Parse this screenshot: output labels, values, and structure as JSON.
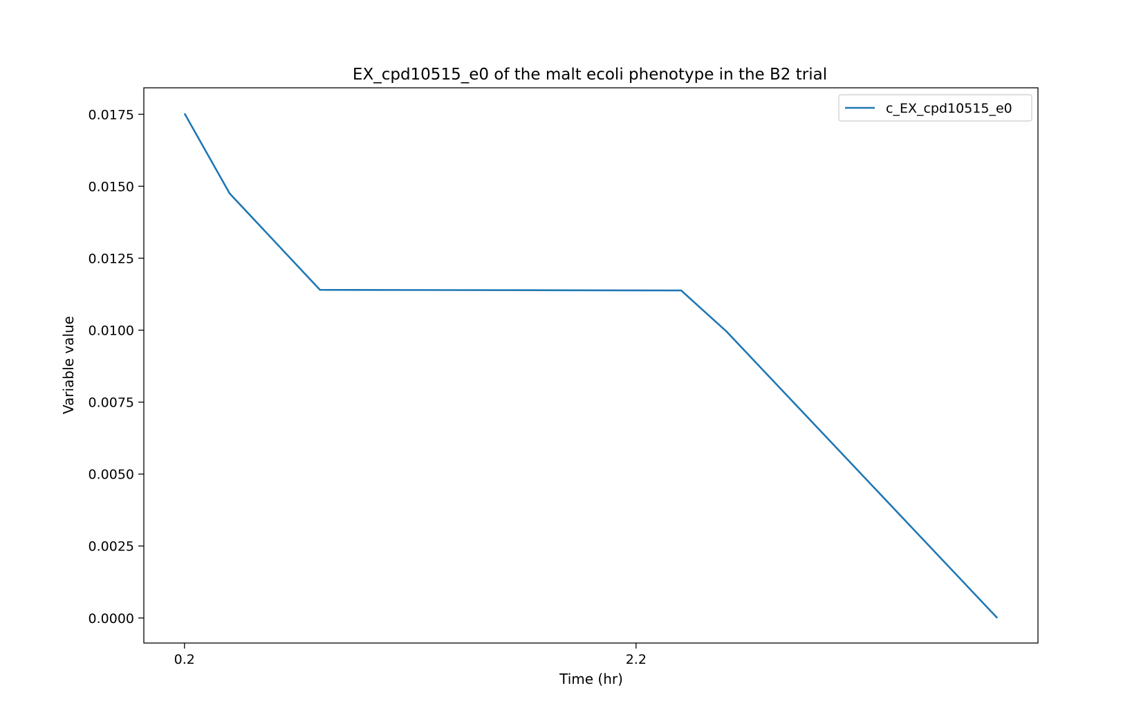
{
  "chart_data": {
    "type": "line",
    "title": "EX_cpd10515_e0 of the malt ecoli phenotype in the B2 trial",
    "xlabel": "Time (hr)",
    "ylabel": "Variable value",
    "x_ticks": [
      0.2,
      2.2
    ],
    "x_tick_labels": [
      "0.2",
      "2.2"
    ],
    "y_ticks": [
      0.0,
      0.0025,
      0.005,
      0.0075,
      0.01,
      0.0125,
      0.015,
      0.0175
    ],
    "y_tick_labels": [
      "0.0000",
      "0.0025",
      "0.0050",
      "0.0075",
      "0.0100",
      "0.0125",
      "0.0150",
      "0.0175"
    ],
    "xlim": [
      0.02,
      3.98
    ],
    "ylim": [
      -0.00087,
      0.01842
    ],
    "grid": false,
    "legend_position": "top-right",
    "series": [
      {
        "name": "c_EX_cpd10515_e0",
        "color": "#1f77b4",
        "x": [
          0.2,
          0.4,
          0.8,
          2.4,
          2.6,
          3.8
        ],
        "y": [
          0.01753,
          0.01475,
          0.0114,
          0.01138,
          0.00996,
          0.0
        ]
      }
    ]
  }
}
